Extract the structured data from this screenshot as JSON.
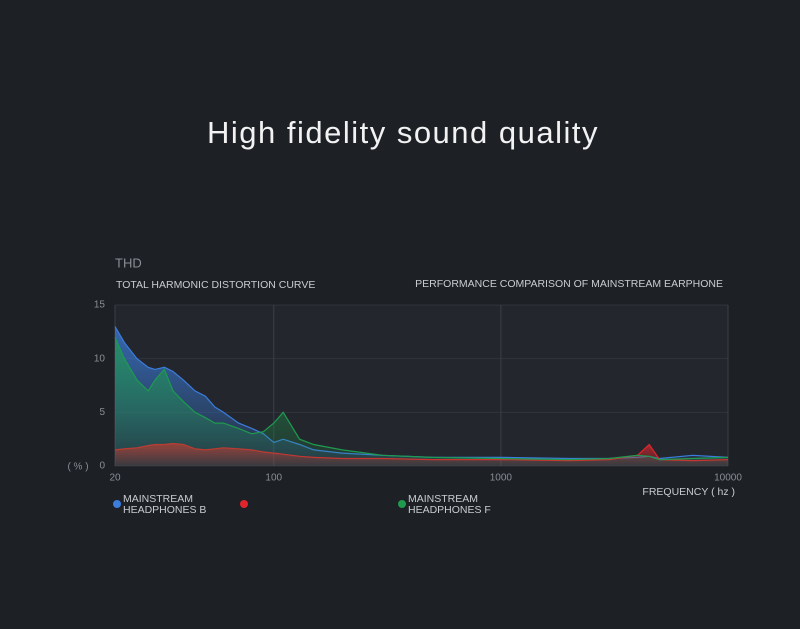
{
  "header": {
    "title": "High fidelity sound quality"
  },
  "chart_data": {
    "type": "area-line",
    "title": "THD",
    "subtitle": "TOTAL HARMONIC DISTORTION CURVE",
    "annotation": "PERFORMANCE COMPARISON OF MAINSTREAM EARPHONE",
    "xlabel": "FREQUENCY ( hz )",
    "ylabel": "( % )",
    "xscale": "log",
    "grid": true,
    "xlim": [
      20,
      10000
    ],
    "xticks": [
      20,
      100,
      1000,
      10000
    ],
    "ylim": [
      0,
      15
    ],
    "yticks": [
      0,
      5,
      10,
      15
    ],
    "x": [
      20,
      22,
      25,
      28,
      30,
      33,
      36,
      40,
      45,
      50,
      55,
      60,
      70,
      80,
      90,
      100,
      110,
      130,
      150,
      200,
      300,
      500,
      1000,
      2000,
      3000,
      4000,
      4500,
      5000,
      7000,
      10000
    ],
    "series": [
      {
        "name": "MAINSTREAM HEADPHONES B",
        "color": "#3b7ddd",
        "values": [
          13,
          11.5,
          10,
          9.2,
          9,
          9.2,
          8.8,
          8,
          7,
          6.5,
          5.5,
          5,
          4,
          3.5,
          3,
          2.2,
          2.5,
          2,
          1.5,
          1.2,
          1,
          0.8,
          0.8,
          0.7,
          0.7,
          0.8,
          0.9,
          0.7,
          1,
          0.8
        ]
      },
      {
        "color": "#e0262c",
        "values": [
          1.5,
          1.6,
          1.7,
          1.9,
          2,
          2,
          2.1,
          2,
          1.6,
          1.5,
          1.6,
          1.7,
          1.6,
          1.5,
          1.3,
          1.2,
          1.1,
          0.9,
          0.8,
          0.7,
          0.7,
          0.6,
          0.6,
          0.5,
          0.6,
          1,
          2,
          0.6,
          0.5,
          0.6
        ]
      },
      {
        "name": "MAINSTREAM HEADPHONES F",
        "color": "#1f9a4e",
        "values": [
          12,
          10,
          8,
          7,
          8,
          9,
          7,
          6,
          5,
          4.5,
          4,
          4,
          3.5,
          3,
          3.2,
          4,
          5,
          2.5,
          2,
          1.5,
          1,
          0.8,
          0.7,
          0.6,
          0.7,
          1,
          0.9,
          0.6,
          0.7,
          0.8
        ]
      }
    ]
  }
}
